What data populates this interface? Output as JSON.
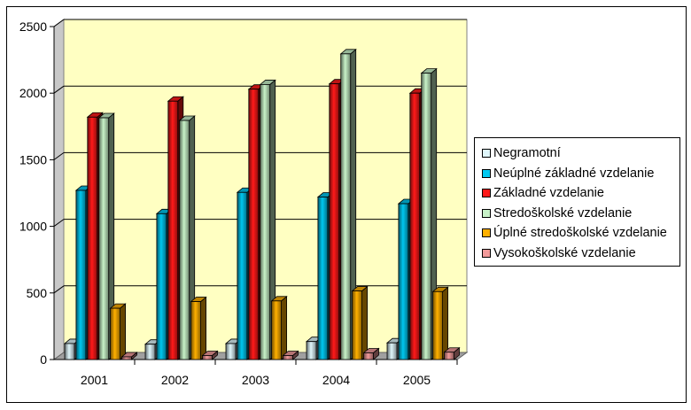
{
  "chart_data": {
    "type": "bar",
    "categories": [
      "2001",
      "2002",
      "2003",
      "2004",
      "2005"
    ],
    "series": [
      {
        "name": "Negramotní",
        "color": "#dff6fb",
        "values": [
          120,
          115,
          120,
          135,
          125
        ]
      },
      {
        "name": "Neúplné základné vzdelanie",
        "color": "#00c8f0",
        "values": [
          1270,
          1095,
          1255,
          1220,
          1170
        ]
      },
      {
        "name": "Základné vzdelanie",
        "color": "#ff1a1a",
        "values": [
          1820,
          1940,
          2030,
          2070,
          2000
        ]
      },
      {
        "name": "Stredoškolské vzdelanie",
        "color": "#c8f2c8",
        "values": [
          1815,
          1795,
          2065,
          2295,
          2150
        ]
      },
      {
        "name": "Úplné stredoškolské vzdelanie",
        "color": "#ffb000",
        "values": [
          385,
          435,
          440,
          515,
          510
        ]
      },
      {
        "name": "Vysokoškolské vzdelanie",
        "color": "#f29a9a",
        "values": [
          20,
          30,
          30,
          50,
          55
        ]
      }
    ],
    "y_ticks": [
      "0",
      "500",
      "1000",
      "1500",
      "2000",
      "2500"
    ],
    "ylim": [
      0,
      2500
    ],
    "grid": true,
    "legend_position": "right"
  }
}
